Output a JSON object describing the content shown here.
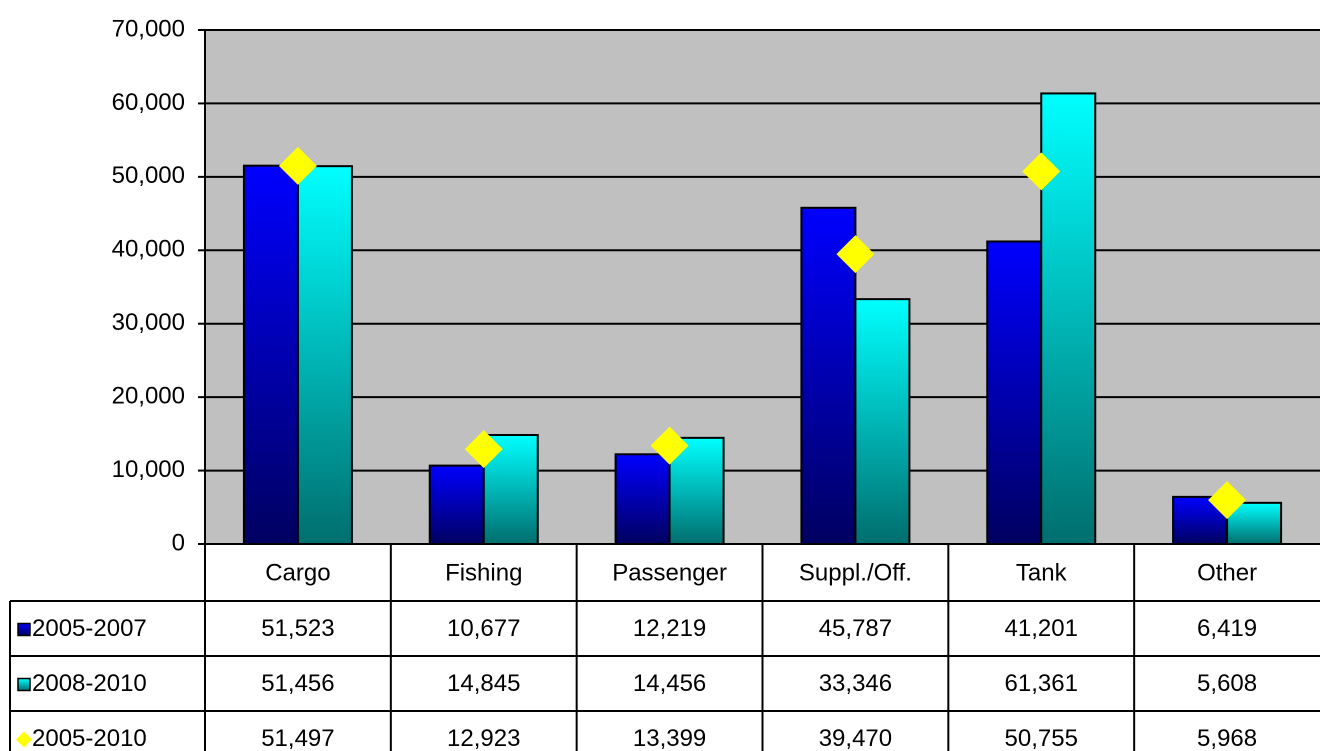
{
  "chart_data": {
    "type": "bar",
    "categories": [
      "Cargo",
      "Fishing",
      "Passenger",
      "Suppl./Off.",
      "Tank",
      "Other"
    ],
    "series": [
      {
        "name": "2005-2007",
        "color": "#0000e0",
        "kind": "bar",
        "values": [
          51523,
          10677,
          12219,
          45787,
          41201,
          6419
        ],
        "value_labels": [
          "51,523",
          "10,677",
          "12,219",
          "45,787",
          "41,201",
          "6,419"
        ]
      },
      {
        "name": "2008-2010",
        "color": "#00e8e8",
        "kind": "bar",
        "values": [
          51456,
          14845,
          14456,
          33346,
          61361,
          5608
        ],
        "value_labels": [
          "51,456",
          "14,845",
          "14,456",
          "33,346",
          "61,361",
          "5,608"
        ]
      },
      {
        "name": "2005-2010",
        "color": "#ffff00",
        "kind": "marker",
        "values": [
          51497,
          12923,
          13399,
          39470,
          50755,
          5968
        ],
        "value_labels": [
          "51,497",
          "12,923",
          "13,399",
          "39,470",
          "50,755",
          "5,968"
        ]
      }
    ],
    "ylim": [
      0,
      70000
    ],
    "yticks": [
      0,
      {
        "value": 10000,
        "label": "10,000"
      },
      {
        "value": 20000,
        "label": "20,000"
      },
      {
        "value": 30000,
        "label": "30,000"
      },
      {
        "value": 40000,
        "label": "40,000"
      },
      {
        "value": 50000,
        "label": "50,000"
      },
      {
        "value": 60000,
        "label": "60,000"
      },
      {
        "value": 70000,
        "label": "70,000"
      }
    ],
    "grid": true
  }
}
